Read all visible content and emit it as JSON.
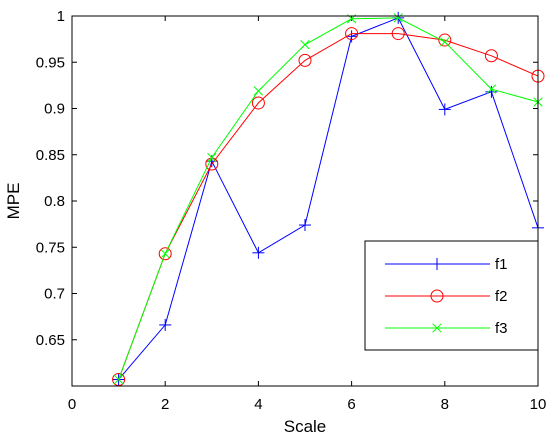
{
  "chart_data": {
    "type": "line",
    "title": "",
    "xlabel": "Scale",
    "ylabel": "MPE",
    "xlim": [
      0,
      10
    ],
    "ylim": [
      0.6,
      1.0
    ],
    "x_ticks": [
      0,
      2,
      4,
      6,
      8,
      10
    ],
    "y_ticks": [
      0.65,
      0.7,
      0.75,
      0.8,
      0.85,
      0.9,
      0.95,
      1
    ],
    "x_tick_labels": [
      "0",
      "2",
      "4",
      "6",
      "8",
      "10"
    ],
    "y_tick_labels": [
      "0.65",
      "0.7",
      "0.75",
      "0.8",
      "0.85",
      "0.9",
      "0.95",
      "1"
    ],
    "grid": false,
    "legend_position": "bottom-right",
    "x": [
      1,
      2,
      3,
      4,
      5,
      6,
      7,
      8,
      9,
      10
    ],
    "series": [
      {
        "name": "f1",
        "color": "#0000ff",
        "marker": "plus",
        "values": [
          0.607,
          0.666,
          0.843,
          0.744,
          0.774,
          0.978,
          0.998,
          0.899,
          0.918,
          0.771
        ]
      },
      {
        "name": "f2",
        "color": "#ff0000",
        "marker": "circle",
        "values": [
          0.607,
          0.743,
          0.84,
          0.906,
          0.952,
          0.981,
          0.981,
          0.974,
          0.957,
          0.935
        ]
      },
      {
        "name": "f3",
        "color": "#00ff00",
        "marker": "cross",
        "values": [
          0.607,
          0.743,
          0.847,
          0.919,
          0.969,
          0.997,
          0.998,
          0.972,
          0.921,
          0.907
        ]
      }
    ]
  }
}
